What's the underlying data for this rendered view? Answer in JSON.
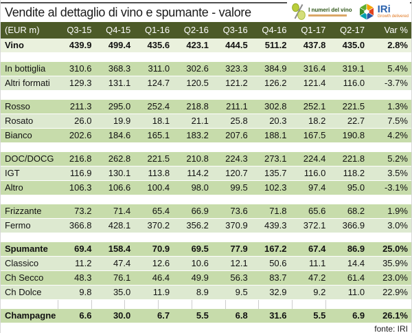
{
  "header": {
    "title": "Vendite al dettaglio di vino e spumante - valore"
  },
  "logos": {
    "numeri_del_vino": {
      "name": "I numeri del vino",
      "icon_color": "#bcd03c",
      "text_color": "#2f5717",
      "tagline_color": "#cf8a33"
    },
    "iri": {
      "name": "IRi",
      "tagline": "Growth delivered",
      "text_color": "#2b62ad",
      "tagline_color": "#e0761e",
      "cube_colors": [
        "#5fae2c",
        "#f5a300",
        "#e0421f",
        "#2757a8",
        "#00a0ad",
        "#3a8c28"
      ]
    }
  },
  "colors": {
    "header_bg": "#4c5a28",
    "row_medium": "#c7dcab",
    "row_light": "#dde9d0",
    "row_pale": "#eaf1dd"
  },
  "chart_data": {
    "type": "table",
    "title": "Vendite al dettaglio di vino e spumante - valore",
    "unit": "(EUR m)",
    "columns": [
      "(EUR m)",
      "Q3-15",
      "Q4-15",
      "Q1-16",
      "Q2-16",
      "Q3-16",
      "Q4-16",
      "Q1-17",
      "Q2-17",
      "Var %"
    ],
    "gridline_gap_group": 6,
    "rows": [
      {
        "group": 0,
        "label": "Vino",
        "bold": true,
        "shade": "pale",
        "values": [
          "439.9",
          "499.4",
          "435.6",
          "423.1",
          "444.5",
          "511.2",
          "437.8",
          "435.0"
        ],
        "var": "2.8%"
      },
      {
        "group": 1,
        "label": "In bottiglia",
        "bold": false,
        "shade": "medium",
        "values": [
          "310.6",
          "368.3",
          "311.0",
          "302.6",
          "323.3",
          "384.9",
          "316.4",
          "319.1"
        ],
        "var": "5.4%"
      },
      {
        "group": 1,
        "label": "Altri formati",
        "bold": false,
        "shade": "light",
        "values": [
          "129.3",
          "131.1",
          "124.7",
          "120.5",
          "121.2",
          "126.2",
          "121.4",
          "116.0"
        ],
        "var": "-3.7%"
      },
      {
        "group": 2,
        "label": "Rosso",
        "bold": false,
        "shade": "medium",
        "values": [
          "211.3",
          "295.0",
          "252.4",
          "218.8",
          "211.1",
          "302.8",
          "252.1",
          "221.5"
        ],
        "var": "1.3%"
      },
      {
        "group": 2,
        "label": "Rosato",
        "bold": false,
        "shade": "light",
        "values": [
          "26.0",
          "19.9",
          "18.1",
          "21.1",
          "25.8",
          "20.3",
          "18.2",
          "22.7"
        ],
        "var": "7.5%"
      },
      {
        "group": 2,
        "label": "Bianco",
        "bold": false,
        "shade": "medium",
        "values": [
          "202.6",
          "184.6",
          "165.1",
          "183.2",
          "207.6",
          "188.1",
          "167.5",
          "190.8"
        ],
        "var": "4.2%"
      },
      {
        "group": 3,
        "label": "DOC/DOCG",
        "bold": false,
        "shade": "medium",
        "values": [
          "216.8",
          "262.8",
          "221.5",
          "210.8",
          "224.3",
          "273.1",
          "224.4",
          "221.8"
        ],
        "var": "5.2%"
      },
      {
        "group": 3,
        "label": "IGT",
        "bold": false,
        "shade": "light",
        "values": [
          "116.9",
          "130.1",
          "113.8",
          "114.2",
          "120.7",
          "135.7",
          "116.0",
          "118.2"
        ],
        "var": "3.5%"
      },
      {
        "group": 3,
        "label": "Altro",
        "bold": false,
        "shade": "medium",
        "values": [
          "106.3",
          "106.6",
          "100.4",
          "98.0",
          "99.5",
          "102.3",
          "97.4",
          "95.0"
        ],
        "var": "-3.1%"
      },
      {
        "group": 4,
        "label": "Frizzante",
        "bold": false,
        "shade": "medium",
        "values": [
          "73.2",
          "71.4",
          "65.4",
          "66.9",
          "73.6",
          "71.8",
          "65.6",
          "68.2"
        ],
        "var": "1.9%"
      },
      {
        "group": 4,
        "label": "Fermo",
        "bold": false,
        "shade": "light",
        "values": [
          "366.8",
          "428.1",
          "370.2",
          "356.2",
          "370.9",
          "439.3",
          "372.1",
          "366.9"
        ],
        "var": "3.0%"
      },
      {
        "group": 5,
        "label": "Spumante",
        "bold": true,
        "shade": "medium",
        "values": [
          "69.4",
          "158.4",
          "70.9",
          "69.5",
          "77.9",
          "167.2",
          "67.4",
          "86.9"
        ],
        "var": "25.0%"
      },
      {
        "group": 5,
        "label": "Classico",
        "bold": false,
        "shade": "light",
        "values": [
          "11.2",
          "47.4",
          "12.6",
          "10.6",
          "12.1",
          "50.6",
          "11.1",
          "14.4"
        ],
        "var": "35.9%"
      },
      {
        "group": 5,
        "label": "Ch Secco",
        "bold": false,
        "shade": "medium",
        "values": [
          "48.3",
          "76.1",
          "46.4",
          "49.9",
          "56.3",
          "83.7",
          "47.2",
          "61.4"
        ],
        "var": "23.0%"
      },
      {
        "group": 5,
        "label": "Ch Dolce",
        "bold": false,
        "shade": "light",
        "values": [
          "9.8",
          "35.0",
          "11.9",
          "8.9",
          "9.5",
          "32.9",
          "9.2",
          "11.0"
        ],
        "var": "22.9%"
      },
      {
        "group": 6,
        "label": "Champagne",
        "bold": true,
        "shade": "medium",
        "values": [
          "6.6",
          "30.0",
          "6.7",
          "5.5",
          "6.8",
          "31.6",
          "5.5",
          "6.9"
        ],
        "var": "26.1%"
      }
    ]
  },
  "footer": {
    "source": "fonte: IRI"
  }
}
